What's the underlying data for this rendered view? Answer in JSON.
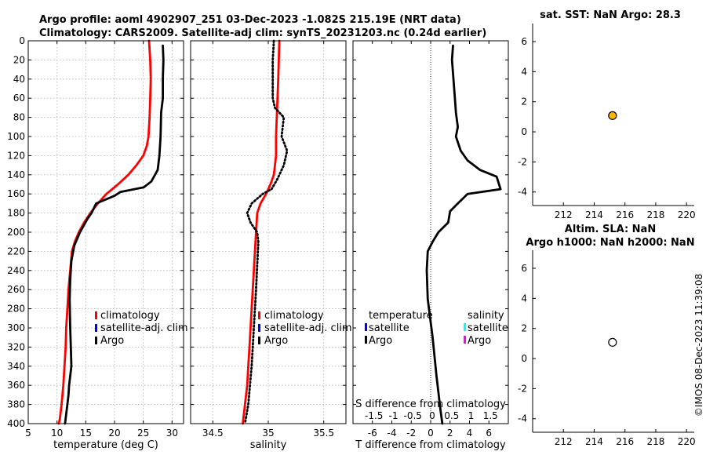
{
  "title": {
    "line1": "Argo profile: aoml 4902907_251 03-Dec-2023 -1.082S 215.19E (NRT data)",
    "line2": "Climatology: CARS2009. Satellite-adj clim: synTS_20231203.nc (0.24d earlier)"
  },
  "sst_title": "sat. SST: NaN Argo: 28.3",
  "sla_title": {
    "line1": "Altim. SLA: NaN",
    "line2": "Argo h1000: NaN h2000: NaN"
  },
  "watermark": "©IMOS 08-Dec-2023 11:39:08",
  "colors": {
    "climatology": "#ff0000",
    "satellite": "#0000ff",
    "argo": "#000000",
    "satellite_s": "#00ffff",
    "argo_s": "#ff00ff",
    "marker_sst": "#ffb400"
  },
  "legends": {
    "temp": [
      "climatology",
      "satellite-adj. clim",
      "Argo"
    ],
    "sal": [
      "climatology",
      "satellite-adj. clim",
      "Argo"
    ],
    "diff_headers": [
      "temperature",
      "salinity"
    ],
    "diff_temp": [
      "satellite",
      "Argo"
    ],
    "diff_sal": [
      "satellite",
      "Argo"
    ]
  },
  "chart_data": [
    {
      "type": "line",
      "name": "temperature",
      "xlabel": "temperature (deg C)",
      "ylabel": "",
      "xlim": [
        5,
        32
      ],
      "ylim": [
        400,
        0
      ],
      "xticks": [
        5,
        10,
        15,
        20,
        25,
        30
      ],
      "yticks": [
        0,
        20,
        40,
        60,
        80,
        100,
        120,
        140,
        160,
        180,
        200,
        220,
        240,
        260,
        280,
        300,
        320,
        340,
        360,
        380,
        400
      ],
      "grid": true,
      "series": [
        {
          "name": "climatology",
          "color": "#ff0000",
          "x": [
            26,
            26.2,
            26.3,
            26.2,
            26.1,
            25.9,
            25.6,
            25.0,
            23.8,
            22.4,
            20.6,
            18.6,
            17.1,
            15.8,
            14.7,
            13.8,
            13.1,
            12.6,
            12.3,
            12.0,
            11.8,
            11.6,
            11.5,
            11.3,
            11.1,
            10.8,
            10.5,
            10.3
          ],
          "y": [
            0,
            20,
            40,
            60,
            80,
            100,
            110,
            120,
            130,
            140,
            150,
            160,
            170,
            180,
            190,
            200,
            210,
            220,
            240,
            260,
            280,
            300,
            320,
            340,
            360,
            380,
            395,
            400
          ]
        },
        {
          "name": "Argo",
          "color": "#000000",
          "x": [
            28.4,
            28.5,
            28.4,
            28.4,
            28.1,
            28.0,
            27.8,
            27.5,
            26.4,
            25.1,
            21.0,
            20.0,
            16.8,
            16.0,
            15.3,
            14.0,
            13.0,
            12.5,
            12.3,
            12.2,
            12.3,
            12.4,
            12.5,
            12.1,
            12.0,
            11.8,
            11.6,
            11.4
          ],
          "y": [
            5,
            20,
            40,
            60,
            75,
            100,
            120,
            135,
            147,
            153,
            158,
            162,
            170,
            180,
            186,
            200,
            214,
            230,
            250,
            270,
            300,
            320,
            340,
            360,
            370,
            380,
            390,
            400
          ]
        }
      ]
    },
    {
      "type": "line",
      "name": "salinity",
      "xlabel": "salinity",
      "xlim": [
        34.3,
        35.7
      ],
      "ylim": [
        400,
        0
      ],
      "xticks": [
        34.5,
        35,
        35.5
      ],
      "grid": true,
      "series": [
        {
          "name": "climatology",
          "color": "#ff0000",
          "x": [
            35.1,
            35.09,
            35.08,
            35.07,
            35.07,
            35.05,
            35.02,
            34.98,
            34.93,
            34.9,
            34.89,
            34.87,
            34.85,
            34.83,
            34.81,
            34.79,
            34.77
          ],
          "y": [
            0,
            40,
            70,
            100,
            120,
            140,
            150,
            160,
            170,
            180,
            200,
            240,
            280,
            320,
            360,
            380,
            400
          ]
        },
        {
          "name": "Argo",
          "color": "#000000",
          "dash": "dotted",
          "x": [
            35.05,
            35.04,
            35.04,
            35.06,
            35.14,
            35.12,
            35.17,
            35.14,
            35.08,
            35.03,
            34.95,
            34.85,
            34.81,
            34.84,
            34.9,
            34.91,
            34.89,
            34.87,
            34.85,
            34.82,
            34.79
          ],
          "y": [
            0,
            20,
            60,
            70,
            80,
            100,
            115,
            130,
            145,
            155,
            160,
            170,
            180,
            190,
            200,
            210,
            260,
            300,
            340,
            380,
            400
          ]
        }
      ]
    },
    {
      "type": "line",
      "name": "difference",
      "xlabel": "T difference from climatology",
      "x2label": "S difference from climatology",
      "xlim": [
        -8,
        8
      ],
      "ylim": [
        400,
        0
      ],
      "xticks": [
        -6,
        -4,
        -2,
        0,
        2,
        4,
        6
      ],
      "xtick_labels": [
        "-6",
        "-4",
        "-2",
        "0",
        "2",
        "4",
        "6"
      ],
      "x2ticks": [
        "-1.5",
        "-1",
        "-0.5",
        "0",
        "0.5",
        "1",
        "1.5"
      ],
      "series": [
        {
          "name": "Argo",
          "color": "#000000",
          "x": [
            2.3,
            2.2,
            2.5,
            2.6,
            2.8,
            2.6,
            3.1,
            3.8,
            5.1,
            6.8,
            7.2,
            3.8,
            2.8,
            2.0,
            1.8,
            0.8,
            0.2,
            -0.3,
            -0.4,
            -0.3,
            0.2,
            0.6,
            1.0,
            1.2
          ],
          "y": [
            5,
            20,
            60,
            75,
            90,
            100,
            115,
            125,
            135,
            142,
            155,
            160,
            170,
            178,
            190,
            200,
            210,
            220,
            240,
            270,
            310,
            350,
            385,
            400
          ]
        }
      ]
    },
    {
      "type": "scatter",
      "name": "sst_map",
      "title": "sat. SST: NaN Argo: 28.3",
      "xlim": [
        210,
        220.5
      ],
      "ylim": [
        -4.9,
        7.2
      ],
      "xticks": [
        212,
        214,
        216,
        218,
        220
      ],
      "yticks": [
        -4,
        -2,
        0,
        2,
        4,
        6
      ],
      "points": [
        {
          "x": 215.19,
          "y": 1.08,
          "color": "#ffb400"
        }
      ]
    },
    {
      "type": "scatter",
      "name": "sla_map",
      "title": "Altim. SLA: NaN / Argo h1000: NaN h2000: NaN",
      "xlim": [
        210,
        220.5
      ],
      "ylim": [
        -4.9,
        7.2
      ],
      "xticks": [
        212,
        214,
        216,
        218,
        220
      ],
      "yticks": [
        -4,
        -2,
        0,
        2,
        4,
        6
      ],
      "points": [
        {
          "x": 215.19,
          "y": 1.08,
          "color": "#ffffff"
        }
      ]
    }
  ]
}
